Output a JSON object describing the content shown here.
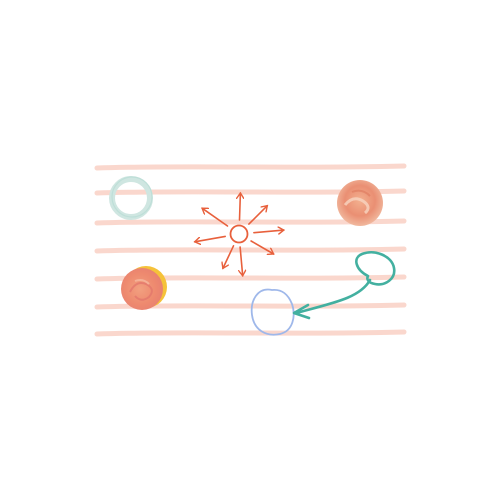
{
  "colors": {
    "background": "#ffffff",
    "lines": "#f8c9bc",
    "sun": "#e8603c",
    "teal_ring": "#cfe6e1",
    "teal_ring_stroke": "#b7dcd4",
    "blob_right": "#ea8f73",
    "blob_left": "#ee8a6f",
    "blob_left_accent": "#f5c23a",
    "blue_circle": "#9fb8ea",
    "arrow": "#43b0a0"
  },
  "icons": {
    "lined_paper": "lined-paper-background",
    "sun": "sun-icon",
    "ring": "ring-icon",
    "blob": "blob-icon",
    "target_circle": "circle-icon",
    "curved_arrow": "curved-arrow-icon"
  },
  "counts": {
    "line_count": 7,
    "sun_ray_count": 8
  }
}
